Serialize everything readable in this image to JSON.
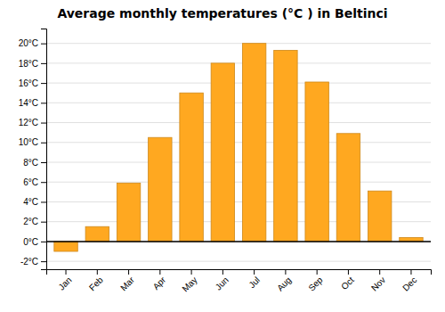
{
  "chart_data": {
    "type": "bar",
    "title": "Average monthly temperatures (°C ) in Beltinci",
    "categories": [
      "Jan",
      "Feb",
      "Mar",
      "Apr",
      "May",
      "Jun",
      "Jul",
      "Aug",
      "Sep",
      "Oct",
      "Nov",
      "Dec"
    ],
    "values": [
      -1.0,
      1.5,
      5.9,
      10.5,
      15.0,
      18.0,
      20.0,
      19.3,
      16.1,
      10.9,
      5.1,
      0.4
    ],
    "color": "#FFA820",
    "ylim": [
      -2.8,
      21.5
    ],
    "yticks": [
      {
        "value": -2,
        "label": "-2°C"
      },
      {
        "value": 0,
        "label": "0°C"
      },
      {
        "value": 2,
        "label": "2°C"
      },
      {
        "value": 4,
        "label": "4°C"
      },
      {
        "value": 6,
        "label": "6°C"
      },
      {
        "value": 8,
        "label": "8°C"
      },
      {
        "value": 10,
        "label": "10°C"
      },
      {
        "value": 12,
        "label": "12°C"
      },
      {
        "value": 14,
        "label": "14°C"
      },
      {
        "value": 16,
        "label": "16°C"
      },
      {
        "value": 18,
        "label": "18°C"
      },
      {
        "value": 20,
        "label": "20°C"
      }
    ],
    "grid": true
  }
}
